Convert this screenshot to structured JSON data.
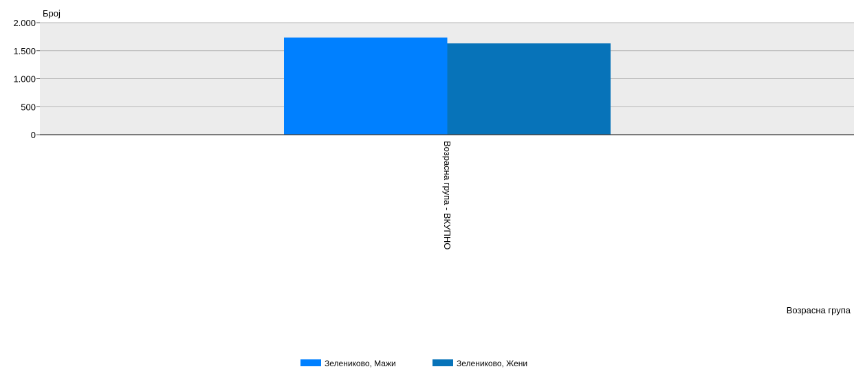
{
  "chart_data": {
    "type": "bar",
    "categories": [
      "Возрасна група - ВКУПНО"
    ],
    "series": [
      {
        "name": "Зелениково, Мажи",
        "values": [
          1735
        ],
        "color": "#0080ff"
      },
      {
        "name": "Зелениково, Жени",
        "values": [
          1630
        ],
        "color": "#0773b9"
      }
    ],
    "xlabel": "Возрасна група",
    "ylabel": "Број",
    "ylim": [
      0,
      2000
    ],
    "yticks": [
      {
        "value": 0,
        "label": "0"
      },
      {
        "value": 500,
        "label": "500"
      },
      {
        "value": 1000,
        "label": "1.000"
      },
      {
        "value": 1500,
        "label": "1.500"
      },
      {
        "value": 2000,
        "label": "2.000"
      }
    ],
    "grid": true,
    "plot_background": "#ececec",
    "legend_position": "bottom-center"
  }
}
